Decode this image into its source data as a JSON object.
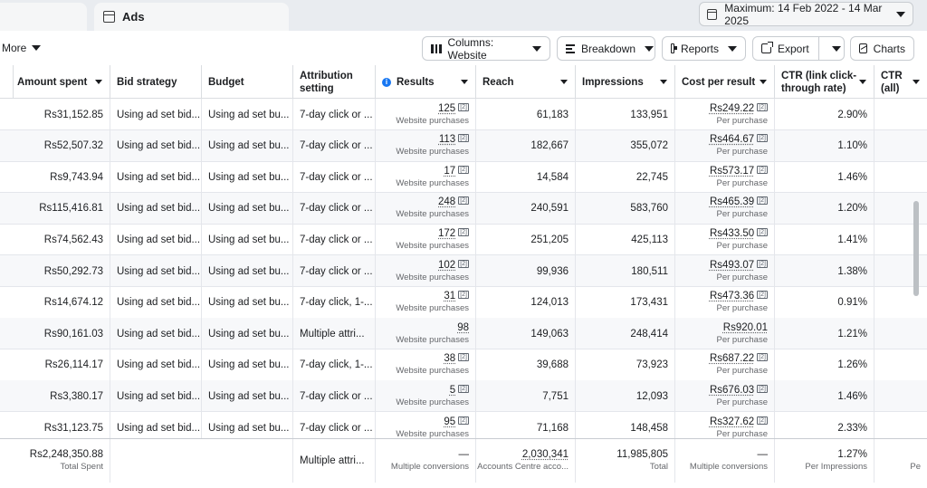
{
  "tabs": {
    "active_label": "Ads"
  },
  "date_range": {
    "label": "Maximum: 14 Feb 2022 - 14 Mar 2025"
  },
  "toolbar": {
    "more_label": "More",
    "columns_label": "Columns: Website",
    "breakdown_label": "Breakdown",
    "reports_label": "Reports",
    "export_label": "Export",
    "charts_label": "Charts"
  },
  "headers": {
    "amount_spent": "Amount spent",
    "bid_strategy": "Bid strategy",
    "budget": "Budget",
    "attribution_line1": "Attribution",
    "attribution_line2": "setting",
    "results": "Results",
    "reach": "Reach",
    "impressions": "Impressions",
    "cost_per_result": "Cost per result",
    "ctr_line1": "CTR (link click-",
    "ctr_line2": "through rate)",
    "ctr_all": "CTR (all)"
  },
  "rows": [
    {
      "spent": "Rs31,152.85",
      "bid": "Using ad set bid...",
      "budget": "Using ad set bu...",
      "attr": "7-day click or ...",
      "result": "125",
      "result_sub": "Website purchases",
      "result_badge": "[2]",
      "reach": "61,183",
      "impr": "133,951",
      "cpr": "Rs249.22",
      "cpr_sub": "Per purchase",
      "cpr_badge": "[2]",
      "ctr": "2.90%"
    },
    {
      "spent": "Rs52,507.32",
      "bid": "Using ad set bid...",
      "budget": "Using ad set bu...",
      "attr": "7-day click or ...",
      "result": "113",
      "result_sub": "Website purchases",
      "result_badge": "[2]",
      "reach": "182,667",
      "impr": "355,072",
      "cpr": "Rs464.67",
      "cpr_sub": "Per purchase",
      "cpr_badge": "[2]",
      "ctr": "1.10%"
    },
    {
      "spent": "Rs9,743.94",
      "bid": "Using ad set bid...",
      "budget": "Using ad set bu...",
      "attr": "7-day click or ...",
      "result": "17",
      "result_sub": "Website purchases",
      "result_badge": "[2]",
      "reach": "14,584",
      "impr": "22,745",
      "cpr": "Rs573.17",
      "cpr_sub": "Per purchase",
      "cpr_badge": "[2]",
      "ctr": "1.46%"
    },
    {
      "spent": "Rs115,416.81",
      "bid": "Using ad set bid...",
      "budget": "Using ad set bu...",
      "attr": "7-day click or ...",
      "result": "248",
      "result_sub": "Website purchases",
      "result_badge": "[2]",
      "reach": "240,591",
      "impr": "583,760",
      "cpr": "Rs465.39",
      "cpr_sub": "Per purchase",
      "cpr_badge": "[2]",
      "ctr": "1.20%"
    },
    {
      "spent": "Rs74,562.43",
      "bid": "Using ad set bid...",
      "budget": "Using ad set bu...",
      "attr": "7-day click or ...",
      "result": "172",
      "result_sub": "Website purchases",
      "result_badge": "[2]",
      "reach": "251,205",
      "impr": "425,113",
      "cpr": "Rs433.50",
      "cpr_sub": "Per purchase",
      "cpr_badge": "[2]",
      "ctr": "1.41%"
    },
    {
      "spent": "Rs50,292.73",
      "bid": "Using ad set bid...",
      "budget": "Using ad set bu...",
      "attr": "7-day click or ...",
      "result": "102",
      "result_sub": "Website purchases",
      "result_badge": "[2]",
      "reach": "99,936",
      "impr": "180,511",
      "cpr": "Rs493.07",
      "cpr_sub": "Per purchase",
      "cpr_badge": "[2]",
      "ctr": "1.38%"
    },
    {
      "spent": "Rs14,674.12",
      "bid": "Using ad set bid...",
      "budget": "Using ad set bu...",
      "attr": "7-day click, 1-...",
      "result": "31",
      "result_sub": "Website purchases",
      "result_badge": "[2]",
      "reach": "124,013",
      "impr": "173,431",
      "cpr": "Rs473.36",
      "cpr_sub": "Per purchase",
      "cpr_badge": "[2]",
      "ctr": "0.91%"
    },
    {
      "spent": "Rs90,161.03",
      "bid": "Using ad set bid...",
      "budget": "Using ad set bu...",
      "attr": "Multiple attri...",
      "result": "98",
      "result_sub": "Website purchases",
      "result_badge": "",
      "reach": "149,063",
      "impr": "248,414",
      "cpr": "Rs920.01",
      "cpr_sub": "Per purchase",
      "cpr_badge": "",
      "ctr": "1.21%"
    },
    {
      "spent": "Rs26,114.17",
      "bid": "Using ad set bid...",
      "budget": "Using ad set bu...",
      "attr": "7-day click, 1-...",
      "result": "38",
      "result_sub": "Website purchases",
      "result_badge": "[2]",
      "reach": "39,688",
      "impr": "73,923",
      "cpr": "Rs687.22",
      "cpr_sub": "Per purchase",
      "cpr_badge": "[2]",
      "ctr": "1.26%"
    },
    {
      "spent": "Rs3,380.17",
      "bid": "Using ad set bid...",
      "budget": "Using ad set bu...",
      "attr": "7-day click or ...",
      "result": "5",
      "result_sub": "Website purchases",
      "result_badge": "[2]",
      "reach": "7,751",
      "impr": "12,093",
      "cpr": "Rs676.03",
      "cpr_sub": "Per purchase",
      "cpr_badge": "[2]",
      "ctr": "1.46%"
    },
    {
      "spent": "Rs31,123.75",
      "bid": "Using ad set bid...",
      "budget": "Using ad set bu...",
      "attr": "7-day click or ...",
      "result": "95",
      "result_sub": "Website purchases",
      "result_badge": "[2]",
      "reach": "71,168",
      "impr": "148,458",
      "cpr": "Rs327.62",
      "cpr_sub": "Per purchase",
      "cpr_badge": "[2]",
      "ctr": "2.33%"
    }
  ],
  "totals": {
    "spent": "Rs2,248,350.88",
    "spent_sub": "Total Spent",
    "attr": "Multiple attri...",
    "result": "—",
    "result_sub": "Multiple conversions",
    "reach": "2,030,341",
    "reach_sub": "Accounts Centre acco...",
    "impr": "11,985,805",
    "impr_sub": "Total",
    "cpr": "—",
    "cpr_sub": "Multiple conversions",
    "ctr": "1.27%",
    "ctr_sub": "Per Impressions",
    "ctr_all_sub": "Pe"
  }
}
